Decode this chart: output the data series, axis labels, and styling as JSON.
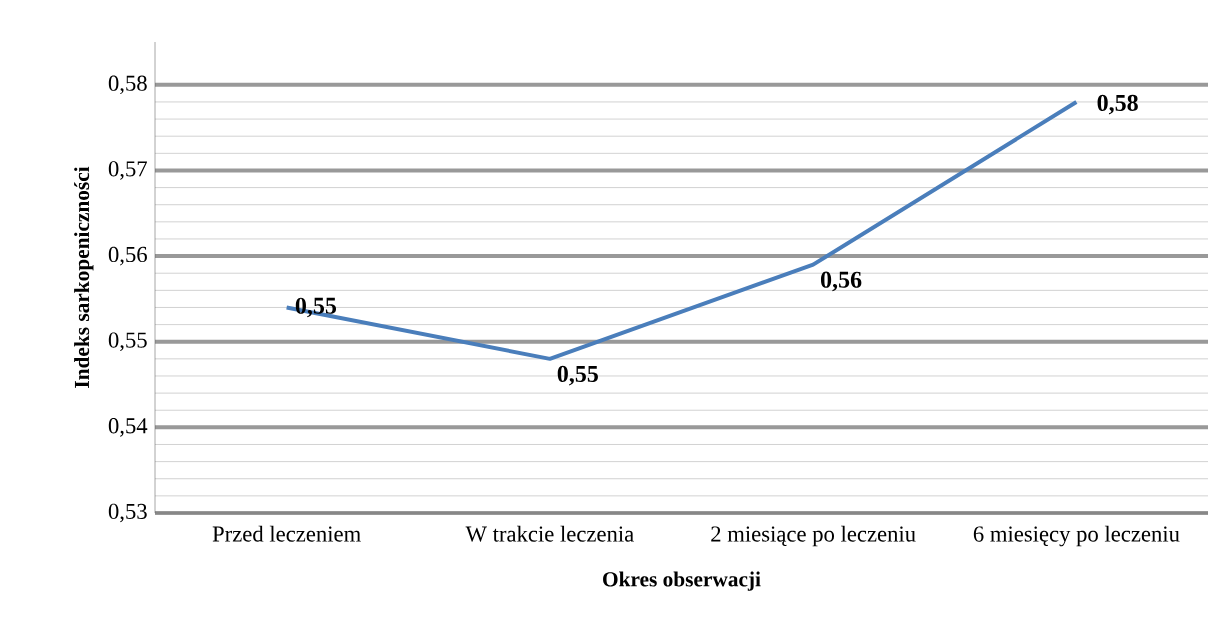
{
  "chart_data": {
    "type": "line",
    "xlabel": "Okres obserwacji",
    "ylabel": "Indeks sarkopeniczności",
    "categories": [
      "Przed leczeniem",
      "W trakcie leczenia",
      "2 miesiące po leczeniu",
      "6 miesięcy po leczeniu"
    ],
    "values": [
      0.554,
      0.548,
      0.559,
      0.578
    ],
    "value_labels": [
      "0,55",
      "0,55",
      "0,56",
      "0,58"
    ],
    "color": "#4a7ebb",
    "ylim": [
      0.53,
      0.585
    ],
    "yticks": [
      {
        "value": 0.53,
        "label": "0,53"
      },
      {
        "value": 0.54,
        "label": "0,54"
      },
      {
        "value": 0.55,
        "label": "0,55"
      },
      {
        "value": 0.56,
        "label": "0,56"
      },
      {
        "value": 0.57,
        "label": "0,57"
      },
      {
        "value": 0.58,
        "label": "0,58"
      }
    ],
    "grid": "y",
    "marker": "none",
    "line_style": "solid"
  }
}
